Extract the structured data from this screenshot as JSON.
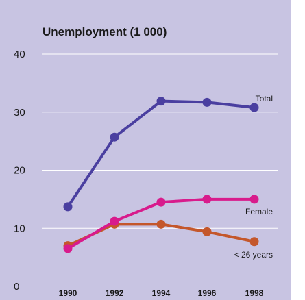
{
  "chart_data": {
    "type": "line",
    "title": "Unemployment (1 000)",
    "x": [
      "1990",
      "1992",
      "1994",
      "1996",
      "1998"
    ],
    "yticks": [
      "0",
      "10",
      "20",
      "30",
      "40"
    ],
    "ylim": [
      0,
      40
    ],
    "grid": true,
    "series": [
      {
        "name": "Total",
        "values": [
          13.7,
          25.7,
          31.9,
          31.7,
          30.8
        ],
        "color": "#4a3fa0"
      },
      {
        "name": "Female",
        "values": [
          6.5,
          11.2,
          14.5,
          15.0,
          15.0
        ],
        "color": "#d81b8c"
      },
      {
        "name": "< 26 years",
        "values": [
          7.0,
          10.7,
          10.7,
          9.4,
          7.7
        ],
        "color": "#c4572b"
      }
    ]
  }
}
